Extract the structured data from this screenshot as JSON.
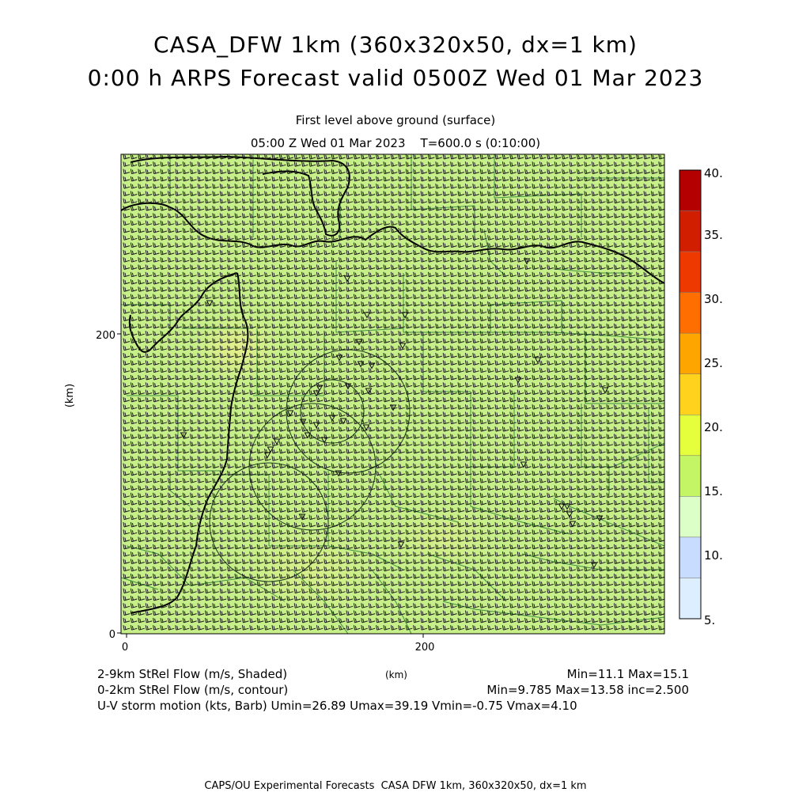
{
  "header": {
    "title_line1": "CASA_DFW 1km (360x320x50, dx=1 km)",
    "title_line2": "0:00 h ARPS Forecast valid 0500Z Wed 01 Mar 2023",
    "level": "First level above ground (surface)",
    "time": "05:00 Z Wed 01 Mar 2023    T=600.0 s (0:10:00)"
  },
  "axes": {
    "x_ticks": [
      "0",
      "200"
    ],
    "y_ticks": [
      "0",
      "200"
    ],
    "x_unit": "(km)",
    "y_unit": "(km)"
  },
  "colorbar": {
    "labels": [
      "40.",
      "35.",
      "30.",
      "25.",
      "20.",
      "15.",
      "10.",
      "5."
    ],
    "colors": [
      "#b40000",
      "#d21e00",
      "#ee3a00",
      "#ff6e00",
      "#ffa500",
      "#ffd21e",
      "#e6ff3c",
      "#c3f564",
      "#dcffc8",
      "#c8dcff",
      "#dceeff"
    ]
  },
  "field": {
    "base_color": "#c6ef8a",
    "highlight_color": "#e4ef8a"
  },
  "legend": {
    "line1_left": "2-9km StRel Flow (m/s, Shaded)",
    "line1_mid": "(km)",
    "line1_right": "Min=11.1 Max=15.1",
    "line2_left": "0-2km StRel Flow (m/s, contour)",
    "line2_right": "Min=9.785 Max=13.58 inc=2.500",
    "line3": "U-V storm motion (kts, Barb)  Umin=26.89 Umax=39.19 Vmin=-0.75 Vmax=4.10"
  },
  "footer": {
    "text": "CAPS/OU Experimental Forecasts  CASA DFW 1km, 360x320x50, dx=1 km"
  }
}
